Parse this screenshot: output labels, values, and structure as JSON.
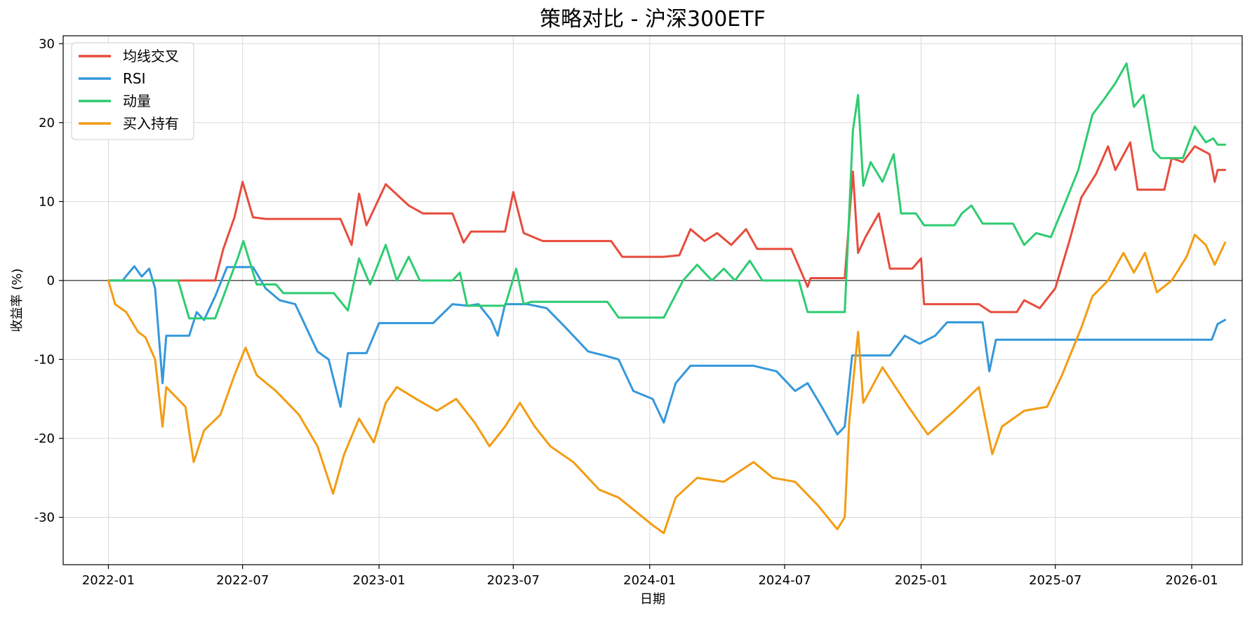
{
  "chart_data": {
    "type": "line",
    "title": "策略对比 - 沪深300ETF",
    "xlabel": "日期",
    "ylabel": "收益率 (%)",
    "ylim": [
      -36,
      31
    ],
    "xlim": [
      "2021-11-01",
      "2026-03-10"
    ],
    "yticks": [
      -30,
      -20,
      -10,
      0,
      10,
      20,
      30
    ],
    "ytick_labels": [
      "-30",
      "-20",
      "-10",
      "0",
      "10",
      "20",
      "30"
    ],
    "xticks": [
      "2022-01",
      "2022-07",
      "2023-01",
      "2023-07",
      "2024-01",
      "2024-07",
      "2025-01",
      "2025-07",
      "2026-01"
    ],
    "grid": true,
    "zero_line": true,
    "legend_position": "upper-left",
    "series": [
      {
        "name": "均线交叉",
        "color": "#e74c3c",
        "points": [
          [
            "2022-01-01",
            0
          ],
          [
            "2022-04-15",
            0
          ],
          [
            "2022-05-25",
            0
          ],
          [
            "2022-06-05",
            4
          ],
          [
            "2022-06-20",
            8
          ],
          [
            "2022-07-01",
            12.5
          ],
          [
            "2022-07-15",
            8
          ],
          [
            "2022-08-01",
            7.8
          ],
          [
            "2022-11-10",
            7.8
          ],
          [
            "2022-11-25",
            4.5
          ],
          [
            "2022-12-05",
            11
          ],
          [
            "2022-12-15",
            7
          ],
          [
            "2023-01-10",
            12.2
          ],
          [
            "2023-02-10",
            9.5
          ],
          [
            "2023-03-01",
            8.5
          ],
          [
            "2023-04-10",
            8.5
          ],
          [
            "2023-04-25",
            4.8
          ],
          [
            "2023-05-05",
            6.2
          ],
          [
            "2023-06-20",
            6.2
          ],
          [
            "2023-07-01",
            11.2
          ],
          [
            "2023-07-15",
            6
          ],
          [
            "2023-08-10",
            5
          ],
          [
            "2023-11-10",
            5
          ],
          [
            "2023-11-25",
            3
          ],
          [
            "2024-01-20",
            3
          ],
          [
            "2024-02-10",
            3.2
          ],
          [
            "2024-02-25",
            6.5
          ],
          [
            "2024-03-15",
            5
          ],
          [
            "2024-04-01",
            6
          ],
          [
            "2024-04-20",
            4.5
          ],
          [
            "2024-05-10",
            6.5
          ],
          [
            "2024-05-25",
            4
          ],
          [
            "2024-07-10",
            4
          ],
          [
            "2024-08-01",
            -0.8
          ],
          [
            "2024-08-05",
            0.3
          ],
          [
            "2024-09-20",
            0.3
          ],
          [
            "2024-10-01",
            13.8
          ],
          [
            "2024-10-08",
            3.5
          ],
          [
            "2024-10-18",
            5.5
          ],
          [
            "2024-11-05",
            8.5
          ],
          [
            "2024-11-20",
            1.5
          ],
          [
            "2024-12-20",
            1.5
          ],
          [
            "2025-01-01",
            2.8
          ],
          [
            "2025-01-05",
            -3
          ],
          [
            "2025-03-20",
            -3
          ],
          [
            "2025-04-05",
            -4
          ],
          [
            "2025-05-10",
            -4
          ],
          [
            "2025-05-20",
            -2.5
          ],
          [
            "2025-06-10",
            -3.5
          ],
          [
            "2025-07-01",
            -1
          ],
          [
            "2025-07-20",
            5
          ],
          [
            "2025-08-05",
            10.5
          ],
          [
            "2025-08-25",
            13.5
          ],
          [
            "2025-09-10",
            17
          ],
          [
            "2025-09-20",
            14
          ],
          [
            "2025-10-10",
            17.5
          ],
          [
            "2025-10-20",
            11.5
          ],
          [
            "2025-11-25",
            11.5
          ],
          [
            "2025-12-05",
            15.5
          ],
          [
            "2025-12-20",
            15
          ],
          [
            "2026-01-05",
            17
          ],
          [
            "2026-01-25",
            16
          ],
          [
            "2026-02-01",
            12.5
          ],
          [
            "2026-02-05",
            14
          ],
          [
            "2026-02-15",
            14
          ]
        ]
      },
      {
        "name": "RSI",
        "color": "#3498db",
        "points": [
          [
            "2022-01-01",
            0
          ],
          [
            "2022-01-20",
            0
          ],
          [
            "2022-02-05",
            1.8
          ],
          [
            "2022-02-15",
            0.5
          ],
          [
            "2022-02-25",
            1.5
          ],
          [
            "2022-03-05",
            -1
          ],
          [
            "2022-03-15",
            -13
          ],
          [
            "2022-03-20",
            -7
          ],
          [
            "2022-04-01",
            -7
          ],
          [
            "2022-04-20",
            -7
          ],
          [
            "2022-04-30",
            -4
          ],
          [
            "2022-05-10",
            -5
          ],
          [
            "2022-05-25",
            -2
          ],
          [
            "2022-06-10",
            1.7
          ],
          [
            "2022-07-15",
            1.7
          ],
          [
            "2022-08-01",
            -1
          ],
          [
            "2022-08-20",
            -2.5
          ],
          [
            "2022-09-10",
            -3
          ],
          [
            "2022-10-10",
            -9
          ],
          [
            "2022-10-25",
            -10
          ],
          [
            "2022-11-10",
            -16
          ],
          [
            "2022-11-20",
            -9.2
          ],
          [
            "2022-12-15",
            -9.2
          ],
          [
            "2023-01-01",
            -5.4
          ],
          [
            "2023-03-15",
            -5.4
          ],
          [
            "2023-04-10",
            -3
          ],
          [
            "2023-05-01",
            -3.2
          ],
          [
            "2023-05-15",
            -3
          ],
          [
            "2023-06-01",
            -5
          ],
          [
            "2023-06-10",
            -7
          ],
          [
            "2023-06-20",
            -3
          ],
          [
            "2023-07-20",
            -3
          ],
          [
            "2023-08-15",
            -3.5
          ],
          [
            "2023-09-10",
            -6
          ],
          [
            "2023-10-10",
            -9
          ],
          [
            "2023-11-01",
            -9.5
          ],
          [
            "2023-11-20",
            -10
          ],
          [
            "2023-12-10",
            -14
          ],
          [
            "2024-01-05",
            -15
          ],
          [
            "2024-01-20",
            -18
          ],
          [
            "2024-02-05",
            -13
          ],
          [
            "2024-02-25",
            -10.8
          ],
          [
            "2024-05-20",
            -10.8
          ],
          [
            "2024-06-20",
            -11.5
          ],
          [
            "2024-07-15",
            -14
          ],
          [
            "2024-08-01",
            -13
          ],
          [
            "2024-08-20",
            -16
          ],
          [
            "2024-09-10",
            -19.5
          ],
          [
            "2024-09-20",
            -18.5
          ],
          [
            "2024-09-30",
            -9.5
          ],
          [
            "2024-11-20",
            -9.5
          ],
          [
            "2024-12-10",
            -7
          ],
          [
            "2024-12-30",
            -8
          ],
          [
            "2025-01-20",
            -7
          ],
          [
            "2025-02-05",
            -5.3
          ],
          [
            "2025-03-25",
            -5.3
          ],
          [
            "2025-04-03",
            -11.5
          ],
          [
            "2025-04-12",
            -7.5
          ],
          [
            "2026-01-28",
            -7.5
          ],
          [
            "2026-02-05",
            -5.5
          ],
          [
            "2026-02-15",
            -5
          ]
        ]
      },
      {
        "name": "动量",
        "color": "#2ecc71",
        "points": [
          [
            "2022-01-01",
            0
          ],
          [
            "2022-04-05",
            0
          ],
          [
            "2022-04-20",
            -4.8
          ],
          [
            "2022-05-25",
            -4.8
          ],
          [
            "2022-06-25",
            3
          ],
          [
            "2022-07-02",
            5
          ],
          [
            "2022-07-20",
            -0.5
          ],
          [
            "2022-08-15",
            -0.5
          ],
          [
            "2022-08-25",
            -1.6
          ],
          [
            "2022-11-01",
            -1.6
          ],
          [
            "2022-11-20",
            -3.8
          ],
          [
            "2022-12-05",
            2.8
          ],
          [
            "2022-12-20",
            -0.5
          ],
          [
            "2023-01-10",
            4.5
          ],
          [
            "2023-01-25",
            0
          ],
          [
            "2023-02-10",
            3
          ],
          [
            "2023-02-25",
            0
          ],
          [
            "2023-04-10",
            0
          ],
          [
            "2023-04-20",
            1
          ],
          [
            "2023-04-30",
            -3.2
          ],
          [
            "2023-06-20",
            -3.2
          ],
          [
            "2023-07-05",
            1.5
          ],
          [
            "2023-07-15",
            -3
          ],
          [
            "2023-07-25",
            -2.7
          ],
          [
            "2023-11-05",
            -2.7
          ],
          [
            "2023-11-20",
            -4.7
          ],
          [
            "2024-01-20",
            -4.7
          ],
          [
            "2024-02-15",
            0
          ],
          [
            "2024-03-05",
            2
          ],
          [
            "2024-03-25",
            0
          ],
          [
            "2024-04-10",
            1.5
          ],
          [
            "2024-04-25",
            0
          ],
          [
            "2024-05-15",
            2.5
          ],
          [
            "2024-06-01",
            0
          ],
          [
            "2024-07-20",
            0
          ],
          [
            "2024-08-01",
            -4
          ],
          [
            "2024-09-20",
            -4
          ],
          [
            "2024-10-01",
            19
          ],
          [
            "2024-10-08",
            23.5
          ],
          [
            "2024-10-15",
            12
          ],
          [
            "2024-10-25",
            15
          ],
          [
            "2024-11-10",
            12.5
          ],
          [
            "2024-11-25",
            16
          ],
          [
            "2024-12-05",
            8.5
          ],
          [
            "2024-12-25",
            8.5
          ],
          [
            "2025-01-05",
            7
          ],
          [
            "2025-02-15",
            7
          ],
          [
            "2025-02-25",
            8.5
          ],
          [
            "2025-03-10",
            9.5
          ],
          [
            "2025-03-25",
            7.2
          ],
          [
            "2025-05-05",
            7.2
          ],
          [
            "2025-05-20",
            4.5
          ],
          [
            "2025-06-05",
            6
          ],
          [
            "2025-06-25",
            5.5
          ],
          [
            "2025-07-15",
            10
          ],
          [
            "2025-08-01",
            14
          ],
          [
            "2025-08-20",
            21
          ],
          [
            "2025-09-05",
            23
          ],
          [
            "2025-09-20",
            25
          ],
          [
            "2025-10-05",
            27.5
          ],
          [
            "2025-10-15",
            22
          ],
          [
            "2025-10-28",
            23.5
          ],
          [
            "2025-11-10",
            16.5
          ],
          [
            "2025-11-20",
            15.5
          ],
          [
            "2025-12-20",
            15.5
          ],
          [
            "2026-01-05",
            19.5
          ],
          [
            "2026-01-20",
            17.5
          ],
          [
            "2026-01-30",
            18
          ],
          [
            "2026-02-05",
            17.2
          ],
          [
            "2026-02-15",
            17.2
          ]
        ]
      },
      {
        "name": "买入持有",
        "color": "#f39c12",
        "points": [
          [
            "2022-01-01",
            0
          ],
          [
            "2022-01-10",
            -3
          ],
          [
            "2022-01-25",
            -4
          ],
          [
            "2022-02-10",
            -6.5
          ],
          [
            "2022-02-20",
            -7.2
          ],
          [
            "2022-03-05",
            -10
          ],
          [
            "2022-03-15",
            -18.5
          ],
          [
            "2022-03-20",
            -13.5
          ],
          [
            "2022-04-15",
            -16
          ],
          [
            "2022-04-26",
            -23
          ],
          [
            "2022-05-10",
            -19
          ],
          [
            "2022-06-01",
            -17
          ],
          [
            "2022-06-20",
            -12
          ],
          [
            "2022-07-05",
            -8.5
          ],
          [
            "2022-07-20",
            -12
          ],
          [
            "2022-08-15",
            -14
          ],
          [
            "2022-09-15",
            -17
          ],
          [
            "2022-10-10",
            -21
          ],
          [
            "2022-10-31",
            -27
          ],
          [
            "2022-11-15",
            -22
          ],
          [
            "2022-12-05",
            -17.5
          ],
          [
            "2022-12-25",
            -20.5
          ],
          [
            "2023-01-10",
            -15.5
          ],
          [
            "2023-01-25",
            -13.5
          ],
          [
            "2023-02-20",
            -15
          ],
          [
            "2023-03-20",
            -16.5
          ],
          [
            "2023-04-15",
            -15
          ],
          [
            "2023-05-10",
            -18
          ],
          [
            "2023-05-30",
            -21
          ],
          [
            "2023-06-20",
            -18.5
          ],
          [
            "2023-07-10",
            -15.5
          ],
          [
            "2023-07-30",
            -18.5
          ],
          [
            "2023-08-20",
            -21
          ],
          [
            "2023-09-20",
            -23
          ],
          [
            "2023-10-25",
            -26.5
          ],
          [
            "2023-11-20",
            -27.5
          ],
          [
            "2024-01-05",
            -31
          ],
          [
            "2024-01-20",
            -32
          ],
          [
            "2024-02-05",
            -27.5
          ],
          [
            "2024-03-05",
            -25
          ],
          [
            "2024-04-10",
            -25.5
          ],
          [
            "2024-05-20",
            -23
          ],
          [
            "2024-06-15",
            -25
          ],
          [
            "2024-07-15",
            -25.5
          ],
          [
            "2024-08-15",
            -28.5
          ],
          [
            "2024-09-10",
            -31.5
          ],
          [
            "2024-09-20",
            -30
          ],
          [
            "2024-09-26",
            -18
          ],
          [
            "2024-10-08",
            -6.5
          ],
          [
            "2024-10-15",
            -15.5
          ],
          [
            "2024-11-10",
            -11
          ],
          [
            "2024-12-15",
            -16
          ],
          [
            "2025-01-10",
            -19.5
          ],
          [
            "2025-02-15",
            -16.5
          ],
          [
            "2025-03-20",
            -13.5
          ],
          [
            "2025-04-07",
            -22
          ],
          [
            "2025-04-20",
            -18.5
          ],
          [
            "2025-05-20",
            -16.5
          ],
          [
            "2025-06-20",
            -16
          ],
          [
            "2025-07-10",
            -12
          ],
          [
            "2025-08-05",
            -6
          ],
          [
            "2025-08-20",
            -2
          ],
          [
            "2025-09-10",
            0
          ],
          [
            "2025-10-01",
            3.5
          ],
          [
            "2025-10-15",
            1
          ],
          [
            "2025-10-30",
            3.5
          ],
          [
            "2025-11-15",
            -1.5
          ],
          [
            "2025-12-05",
            0
          ],
          [
            "2025-12-25",
            3
          ],
          [
            "2026-01-05",
            5.8
          ],
          [
            "2026-01-20",
            4.5
          ],
          [
            "2026-02-01",
            2
          ],
          [
            "2026-02-15",
            4.8
          ]
        ]
      }
    ]
  }
}
